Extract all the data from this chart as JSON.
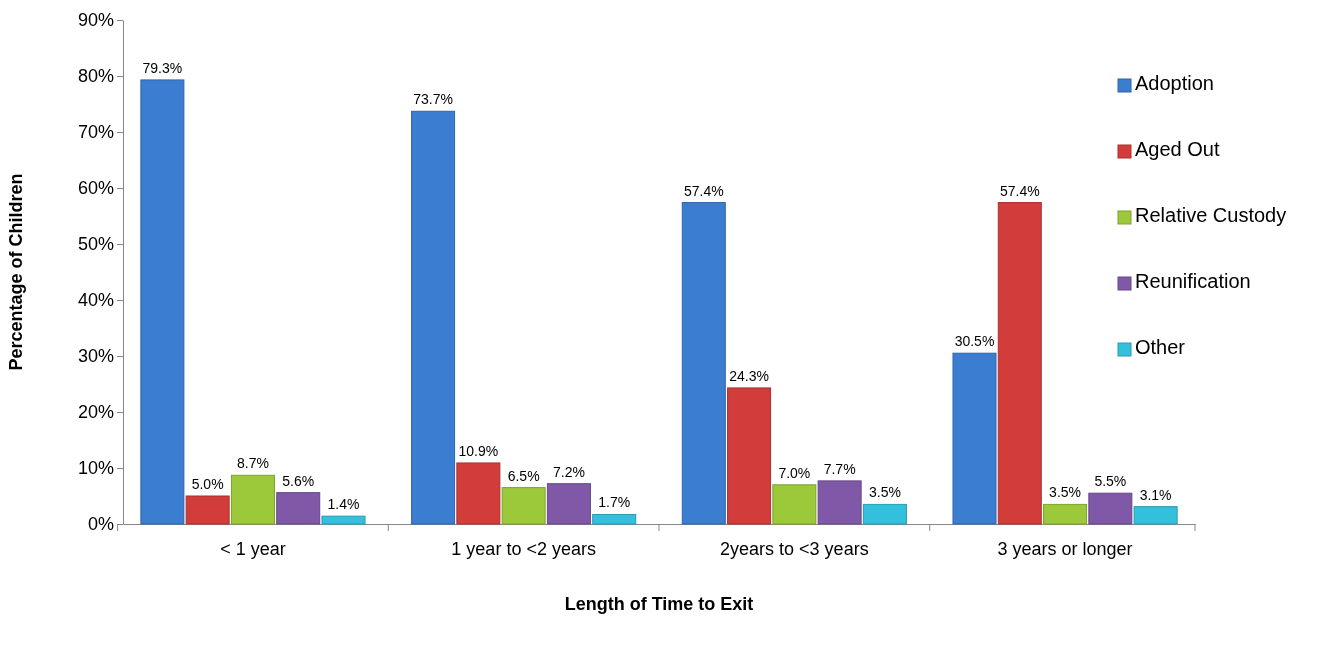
{
  "chart_data": {
    "type": "bar",
    "xlabel": "Length of Time to Exit",
    "ylabel": "Percentage of Children",
    "categories": [
      "< 1 year",
      "1 year to <2 years",
      "2years to <3 years",
      "3 years or longer"
    ],
    "series": [
      {
        "name": "Adoption",
        "color": "#3b7dd0",
        "values": [
          79.3,
          73.7,
          57.4,
          30.5
        ],
        "value_labels": [
          "79.3%",
          "73.7%",
          "57.4%",
          "30.5%"
        ]
      },
      {
        "name": "Aged Out",
        "color": "#d23c3a",
        "values": [
          5.0,
          10.9,
          24.3,
          57.4
        ],
        "value_labels": [
          "5.0%",
          "10.9%",
          "24.3%",
          "57.4%"
        ]
      },
      {
        "name": "Relative Custody",
        "color": "#9bc93a",
        "values": [
          8.7,
          6.5,
          7.0,
          3.5
        ],
        "value_labels": [
          "8.7%",
          "6.5%",
          "7.0%",
          "3.5%"
        ]
      },
      {
        "name": "Reunification",
        "color": "#8058a8",
        "values": [
          5.6,
          7.2,
          7.7,
          5.5
        ],
        "value_labels": [
          "5.6%",
          "7.2%",
          "7.7%",
          "5.5%"
        ]
      },
      {
        "name": "Other",
        "color": "#33c0dc",
        "values": [
          1.4,
          1.7,
          3.5,
          3.1
        ],
        "value_labels": [
          "1.4%",
          "1.7%",
          "3.5%",
          "3.1%"
        ]
      }
    ],
    "ylim": [
      0,
      90
    ],
    "yticks": [
      {
        "value": 0,
        "label": "0%"
      },
      {
        "value": 10,
        "label": "10%"
      },
      {
        "value": 20,
        "label": "20%"
      },
      {
        "value": 30,
        "label": "30%"
      },
      {
        "value": 40,
        "label": "40%"
      },
      {
        "value": 50,
        "label": "50%"
      },
      {
        "value": 60,
        "label": "60%"
      },
      {
        "value": 70,
        "label": "70%"
      },
      {
        "value": 80,
        "label": "80%"
      },
      {
        "value": 90,
        "label": "90%"
      }
    ],
    "legend": "right",
    "grid": false
  }
}
